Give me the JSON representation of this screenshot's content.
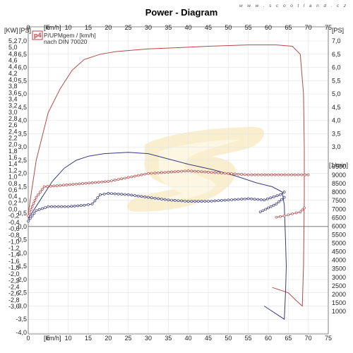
{
  "watermark": "w w w . s c o o t l a n d . c z",
  "chart_data": {
    "type": "line",
    "title": "Power - Diagram",
    "legend_badge": "p4",
    "legend_lines": [
      "P/UPMgem / [km/h]",
      "nach DIN 70020"
    ],
    "axes": {
      "x_bottom": {
        "unit": "[km/h]",
        "range": [
          0,
          75
        ],
        "ticks": [
          0,
          5,
          10,
          15,
          20,
          25,
          30,
          35,
          40,
          45,
          50,
          55,
          60,
          65,
          70,
          75
        ]
      },
      "x_top": {
        "unit": "[km/h]",
        "range": [
          0,
          75
        ],
        "ticks": [
          0,
          5,
          10,
          15,
          20,
          25,
          30,
          35,
          40,
          45,
          50,
          55,
          60,
          65,
          70,
          75
        ]
      },
      "y_kw": {
        "unit": "[KW]",
        "range": [
          -3.0,
          5.2
        ],
        "ticks": [
          "5,2",
          "5,0",
          "4,8",
          "4,6",
          "4,4",
          "4,2",
          "4,0",
          "3,8",
          "3,6",
          "3,4",
          "3,2",
          "3,0",
          "2,8",
          "2,6",
          "2,4",
          "2,2",
          "2,0",
          "1,8",
          "1,6",
          "1,4",
          "1,2",
          "1,0",
          "0,8",
          "0,6",
          "0,4",
          "0,2",
          "0,0",
          "-0,2",
          "-0,4",
          "-0,6",
          "-0,8",
          "-1,0",
          "-1,2",
          "-1,4",
          "-1,6",
          "-1,8",
          "-2,0",
          "-2,2",
          "-2,4",
          "-2,6",
          "-2,8",
          "-3,0"
        ]
      },
      "y_ps": {
        "unit": "[PS]",
        "range": [
          -4.0,
          7.0
        ],
        "ticks": [
          "7,0",
          "6,5",
          "6,0",
          "5,5",
          "5,0",
          "4,5",
          "4,0",
          "3,5",
          "3,0",
          "2,5",
          "2,0",
          "1,5",
          "1,0",
          "0,5",
          "0,0",
          "-0,5",
          "-1,0",
          "-1,5",
          "-2,0",
          "-2,5",
          "-3,0",
          "-3,5",
          "-4,0"
        ]
      },
      "y_right_ps": {
        "unit": "[PS]",
        "range": [
          0,
          7.0
        ],
        "ticks": [
          "7,0",
          "6,5",
          "6,0",
          "5,5",
          "5,0",
          "4,5",
          "4,0",
          "3,5",
          "3,0"
        ]
      },
      "y_rpm": {
        "unit": "[1/min]",
        "range": [
          1000,
          9500
        ],
        "ticks": [
          "9500",
          "9000",
          "8500",
          "8000",
          "7500",
          "7000",
          "6500",
          "6000",
          "5500",
          "5000",
          "4500",
          "4000",
          "3500",
          "3000",
          "2500",
          "2000",
          "1500",
          "1000"
        ]
      }
    },
    "grid": true,
    "series": [
      {
        "color": "#b24a4a",
        "axis": "ps",
        "marker": "none",
        "points": [
          [
            0,
            0.5
          ],
          [
            2,
            2.5
          ],
          [
            5,
            4.3
          ],
          [
            8,
            5.2
          ],
          [
            11,
            5.9
          ],
          [
            14,
            6.3
          ],
          [
            18,
            6.5
          ],
          [
            22,
            6.6
          ],
          [
            30,
            6.7
          ],
          [
            38,
            6.75
          ],
          [
            45,
            6.8
          ],
          [
            55,
            6.85
          ],
          [
            62,
            6.85
          ],
          [
            66,
            6.8
          ],
          [
            68,
            6.5
          ],
          [
            68.8,
            5.0
          ],
          [
            69,
            3.0
          ],
          [
            69,
            1.0
          ],
          [
            68.8,
            -1.5
          ],
          [
            68.5,
            -3.0
          ],
          [
            67,
            -2.8
          ],
          [
            65,
            -2.5
          ],
          [
            61,
            -2.3
          ]
        ]
      },
      {
        "color": "#3a3a7a",
        "axis": "ps",
        "marker": "none",
        "points": [
          [
            0,
            0.3
          ],
          [
            3,
            1.0
          ],
          [
            6,
            1.7
          ],
          [
            9,
            2.2
          ],
          [
            12,
            2.5
          ],
          [
            15,
            2.65
          ],
          [
            19,
            2.75
          ],
          [
            25,
            2.8
          ],
          [
            30,
            2.75
          ],
          [
            35,
            2.55
          ],
          [
            40,
            2.35
          ],
          [
            46,
            2.15
          ],
          [
            52,
            1.9
          ],
          [
            57,
            1.65
          ],
          [
            61,
            1.5
          ],
          [
            63.5,
            1.3
          ],
          [
            64,
            0.8
          ],
          [
            64.3,
            -0.5
          ],
          [
            64.5,
            -1.5
          ],
          [
            64.3,
            -2.5
          ],
          [
            64,
            -3.5
          ],
          [
            62,
            -3.3
          ],
          [
            59,
            -3.0
          ]
        ]
      },
      {
        "color": "#b24a4a",
        "axis": "ps",
        "marker": "circle",
        "points": [
          [
            0,
            0.4
          ],
          [
            2,
            1.1
          ],
          [
            4,
            1.5
          ],
          [
            8,
            1.55
          ],
          [
            12,
            1.6
          ],
          [
            16,
            1.65
          ],
          [
            20,
            1.7
          ],
          [
            25,
            1.85
          ],
          [
            30,
            2.0
          ],
          [
            35,
            2.05
          ],
          [
            40,
            2.1
          ],
          [
            45,
            2.05
          ],
          [
            50,
            2.0
          ],
          [
            55,
            1.95
          ],
          [
            60,
            1.95
          ],
          [
            65,
            1.95
          ],
          [
            70,
            1.95
          ]
        ]
      },
      {
        "color": "#3a3a7a",
        "axis": "ps",
        "marker": "circle",
        "points": [
          [
            0,
            0.2
          ],
          [
            2,
            0.6
          ],
          [
            5,
            0.75
          ],
          [
            10,
            0.75
          ],
          [
            14,
            0.8
          ],
          [
            16,
            0.85
          ],
          [
            18,
            1.2
          ],
          [
            20,
            1.25
          ],
          [
            25,
            1.2
          ],
          [
            30,
            1.1
          ],
          [
            35,
            1.0
          ],
          [
            40,
            0.95
          ],
          [
            45,
            0.95
          ],
          [
            50,
            1.0
          ],
          [
            55,
            1.05
          ],
          [
            59,
            1.0
          ],
          [
            63,
            1.2
          ],
          [
            64,
            1.3
          ]
        ]
      },
      {
        "color": "#3a3a7a",
        "axis": "ps",
        "marker": "circle",
        "points": [
          [
            58,
            0.55
          ],
          [
            60,
            0.7
          ],
          [
            62,
            0.85
          ],
          [
            64,
            1.1
          ]
        ]
      },
      {
        "color": "#b24a4a",
        "axis": "ps",
        "marker": "circle",
        "points": [
          [
            62,
            0.35
          ],
          [
            64,
            0.4
          ],
          [
            66,
            0.48
          ],
          [
            68,
            0.55
          ],
          [
            69,
            0.7
          ]
        ]
      }
    ]
  }
}
